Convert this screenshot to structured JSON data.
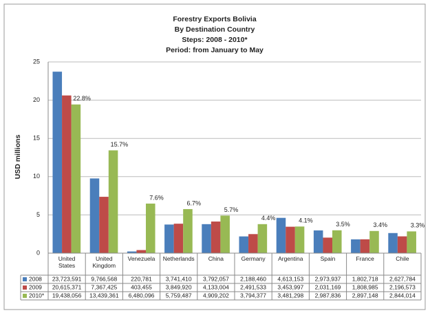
{
  "chart_data": {
    "type": "bar",
    "title": "Forestry Exports Bolivia",
    "subtitle": [
      "By Destination Country",
      "Steps: 2008 - 2010*",
      "Period: from January to May"
    ],
    "y_label": "USD millions",
    "categories": [
      "United States",
      "United Kingdom",
      "Venezuela",
      "Netherlands",
      "China",
      "Germany",
      "Argentina",
      "Spain",
      "France",
      "Chile"
    ],
    "series": [
      {
        "name": "2008",
        "color": "#4a7ebb",
        "values": [
          23.723591,
          9.766568,
          0.220781,
          3.74141,
          3.792057,
          2.18846,
          4.613153,
          2.973937,
          1.802718,
          2.627784
        ],
        "value_labels": [
          "23,723,591",
          "9,766,568",
          "220,781",
          "3,741,410",
          "3,792,057",
          "2,188,460",
          "4,613,153",
          "2,973,937",
          "1,802,718",
          "2,627,784"
        ]
      },
      {
        "name": "2009",
        "color": "#be4b48",
        "values": [
          20.615371,
          7.367425,
          0.403455,
          3.84992,
          4.133004,
          2.491533,
          3.453997,
          2.031169,
          1.808985,
          2.196573
        ],
        "value_labels": [
          "20,615,371",
          "7,367,425",
          "403,455",
          "3,849,920",
          "4,133,004",
          "2,491,533",
          "3,453,997",
          "2,031,169",
          "1,808,985",
          "2,196,573"
        ]
      },
      {
        "name": "2010*",
        "color": "#98b954",
        "values": [
          19.438056,
          13.439361,
          6.480096,
          5.759487,
          4.909202,
          3.794377,
          3.481298,
          2.987836,
          2.897148,
          2.844014
        ],
        "value_labels": [
          "19,438,056",
          "13,439,361",
          "6,480,096",
          "5,759,487",
          "4,909,202",
          "3,794,377",
          "3,481,298",
          "2,987,836",
          "2,897,148",
          "2,844,014"
        ]
      }
    ],
    "annotations": [
      "22.8%",
      "15.7%",
      "7.6%",
      "6.7%",
      "5.7%",
      "4.4%",
      "4.1%",
      "3.5%",
      "3.4%",
      "3.3%"
    ],
    "ylim": [
      0,
      25
    ],
    "yticks": [
      0,
      5,
      10,
      15,
      20,
      25
    ],
    "grid": true
  }
}
